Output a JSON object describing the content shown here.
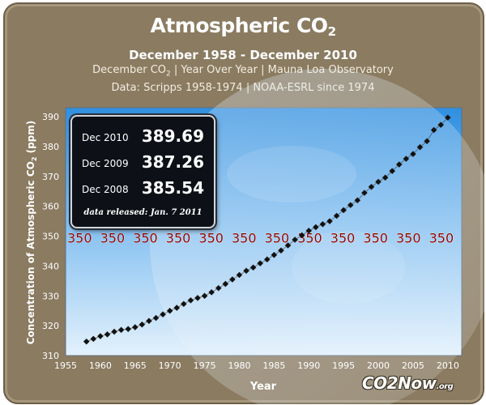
{
  "title_main": "Atmospheric CO",
  "title_sub": "2",
  "subtitle": "December 1958  - December 2010",
  "info_line1": "December CO",
  "info_line1_sub": "2",
  "info_line1_rest": "  |  Year Over Year  |  Mauna Loa Observatory",
  "info_line2": "Data: Scripps 1958-1974 | NOAA-ESRL  since 1974",
  "readout": {
    "rows": [
      {
        "label": "Dec  2010",
        "value": "389.69"
      },
      {
        "label": "Dec  2009",
        "value": "387.26"
      },
      {
        "label": "Dec  2008",
        "value": "385.54"
      }
    ],
    "released": "data released:  Jan. 7  2011"
  },
  "reference_label": "350",
  "logo_main": "CO2Now",
  "logo_org": ".org",
  "colors": {
    "frame": "#8a7b61",
    "plot_bg_top": "#2f8fe0",
    "plot_bg_bottom": "#d9ecfb",
    "marker": "#111111",
    "reference": "#8b0000",
    "axis_text": "#ffffff"
  },
  "chart_data": {
    "type": "line",
    "title": "Atmospheric CO2",
    "xlabel": "Year",
    "ylabel": "Concentration of Atmospheric CO2 (ppm)",
    "xlim": [
      1955,
      2012
    ],
    "ylim": [
      310,
      393
    ],
    "xticks": [
      1955,
      1960,
      1965,
      1970,
      1975,
      1980,
      1985,
      1990,
      1995,
      2000,
      2005,
      2010
    ],
    "yticks": [
      310,
      320,
      330,
      340,
      350,
      360,
      370,
      380,
      390
    ],
    "reference_line": 350,
    "grid": false,
    "series": [
      {
        "x": [
          1958,
          1959,
          1960,
          1961,
          1962,
          1963,
          1964,
          1965,
          1966,
          1967,
          1968,
          1969,
          1970,
          1971,
          1972,
          1973,
          1974,
          1975,
          1976,
          1977,
          1978,
          1979,
          1980,
          1981,
          1982,
          1983,
          1984,
          1985,
          1986,
          1987,
          1988,
          1989,
          1990,
          1991,
          1992,
          1993,
          1994,
          1995,
          1996,
          1997,
          1998,
          1999,
          2000,
          2001,
          2002,
          2003,
          2004,
          2005,
          2006,
          2007,
          2008,
          2009,
          2010
        ],
        "values": [
          314.7,
          315.6,
          316.5,
          317.1,
          318.0,
          318.6,
          318.9,
          319.5,
          320.4,
          321.6,
          322.6,
          323.8,
          325.0,
          326.0,
          327.3,
          328.5,
          329.3,
          330.0,
          331.2,
          332.6,
          334.0,
          335.5,
          337.0,
          338.4,
          339.5,
          340.9,
          342.2,
          343.7,
          345.2,
          346.9,
          348.8,
          350.3,
          351.8,
          353.0,
          354.0,
          355.0,
          356.8,
          358.7,
          360.4,
          362.0,
          364.5,
          366.5,
          368.2,
          369.6,
          371.8,
          374.0,
          375.9,
          377.5,
          379.8,
          381.8,
          385.54,
          387.26,
          389.69
        ]
      }
    ]
  }
}
